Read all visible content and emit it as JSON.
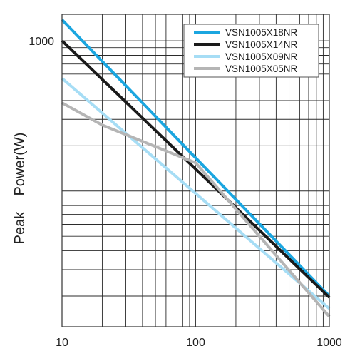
{
  "chart_data": {
    "type": "line",
    "title": "",
    "xlabel": "",
    "ylabel": "Peak    Power(W)",
    "x_scale": "log",
    "y_scale": "log",
    "xlim": [
      10,
      1000
    ],
    "ylim": [
      12.5,
      1500
    ],
    "x_tick_labels": [
      {
        "value": 10,
        "label": "10"
      },
      {
        "value": 100,
        "label": "100"
      },
      {
        "value": 1000,
        "label": "1000"
      }
    ],
    "y_tick_labels": [
      {
        "value": 1000,
        "label": "1000"
      }
    ],
    "grid": true,
    "legend_position": "top-right",
    "series": [
      {
        "name": "VSN1005X18NR",
        "color": "#1ba6e0",
        "points": [
          [
            10,
            1380
          ],
          [
            1000,
            20
          ]
        ]
      },
      {
        "name": "VSN1005X14NR",
        "color": "#1a1a1a",
        "points": [
          [
            10,
            1000
          ],
          [
            1000,
            19.6
          ]
        ]
      },
      {
        "name": "VSN1005X09NR",
        "color": "#a6ddf5",
        "points": [
          [
            10,
            562
          ],
          [
            1000,
            16.5
          ]
        ]
      },
      {
        "name": "VSN1005X05NR",
        "color": "#b5b5b5",
        "points": [
          [
            10,
            386
          ],
          [
            20,
            275
          ],
          [
            100,
            154
          ],
          [
            1000,
            14.6
          ]
        ]
      }
    ]
  }
}
